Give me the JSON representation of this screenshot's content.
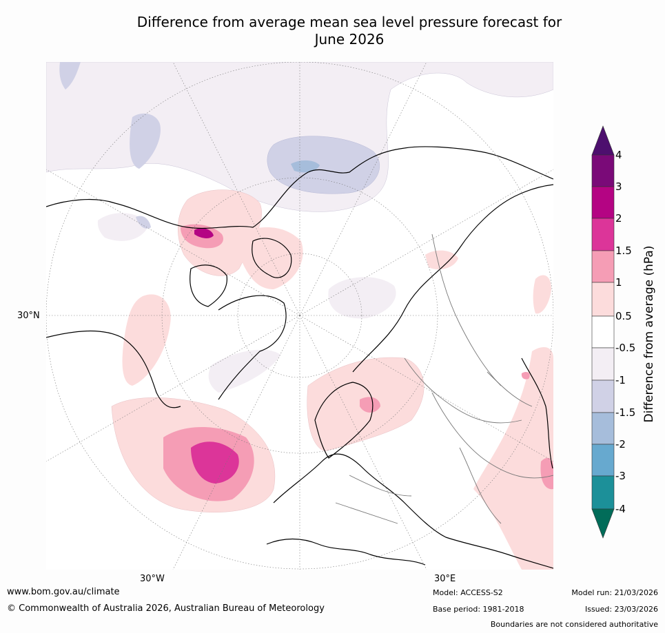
{
  "title": {
    "line1": "Difference from average mean sea level pressure forecast for",
    "line2": "June 2026"
  },
  "map": {
    "projection": "north-polar-stereographic",
    "lat_labels": [
      "30°N"
    ],
    "lon_labels": [
      "30°W",
      "30°E"
    ]
  },
  "colorbar": {
    "label": "Difference from average (hPa)",
    "ticks": [
      "4",
      "3",
      "2",
      "1.5",
      "1",
      "0.5",
      "-0.5",
      "-1",
      "-1.5",
      "-2",
      "-3",
      "-4"
    ],
    "colors": {
      "gt4": "#4d0f6e",
      "3to4": "#7a0a78",
      "2to3": "#b40483",
      "1.5to2": "#dc3599",
      "1to1.5": "#f59db5",
      "0.5to1": "#fcdcdc",
      "neutral": "#ffffff",
      "-1to-0.5": "#f3eef4",
      "-1.5to-1": "#d0d1e6",
      "-2to-1.5": "#a6bddb",
      "-3to-2": "#67a9cf",
      "-4to-3": "#1c9099",
      "lt-4": "#016c59"
    }
  },
  "footer": {
    "url": "www.bom.gov.au/climate",
    "copyright": "© Commonwealth of Australia 2026, Australian Bureau of Meteorology",
    "model": "Model: ACCESS-S2",
    "base_period": "Base period: 1981-2018",
    "model_run": "Model run: 21/03/2026",
    "issued": "Issued: 23/03/2026",
    "disclaimer": "Boundaries are not considered authoritative"
  }
}
